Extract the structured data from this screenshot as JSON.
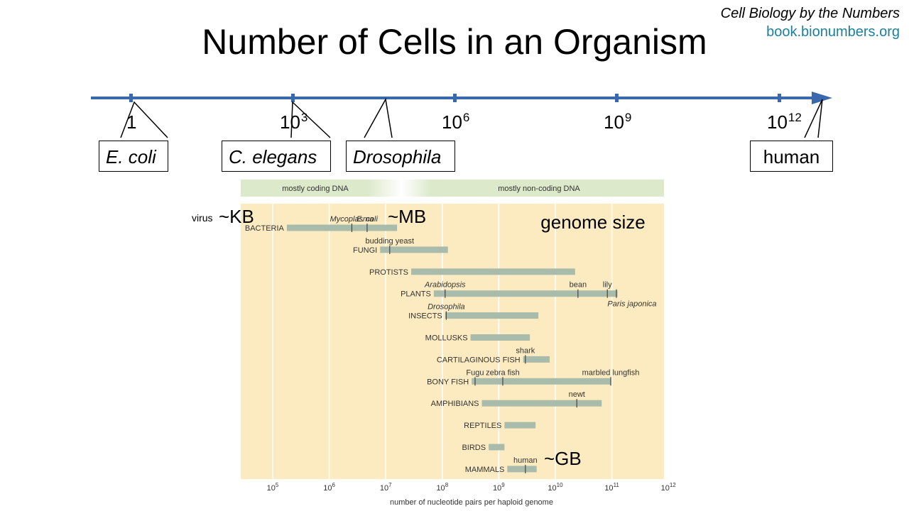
{
  "header": {
    "title": "Number of Cells in an Organism",
    "book": "Cell Biology by the Numbers",
    "url": "book.bionumbers.org"
  },
  "cell_axis": {
    "ticks": [
      {
        "base": "1",
        "exp": ""
      },
      {
        "base": "10",
        "exp": "3"
      },
      {
        "base": "10",
        "exp": "6"
      },
      {
        "base": "10",
        "exp": "9"
      },
      {
        "base": "10",
        "exp": "12"
      }
    ],
    "organisms": [
      {
        "name": "E. coli",
        "italic": true
      },
      {
        "name": "C. elegans",
        "italic": true
      },
      {
        "name": "Drosophila",
        "italic": true
      },
      {
        "name": "human",
        "italic": false
      }
    ]
  },
  "genome_chart": {
    "band_left": "mostly coding DNA",
    "band_right": "mostly non-coding DNA",
    "title": "genome size",
    "xlabel": "number of nucleotide pairs per haploid genome",
    "ticks": [
      {
        "base": "10",
        "exp": "5"
      },
      {
        "base": "10",
        "exp": "6"
      },
      {
        "base": "10",
        "exp": "7"
      },
      {
        "base": "10",
        "exp": "8"
      },
      {
        "base": "10",
        "exp": "9"
      },
      {
        "base": "10",
        "exp": "10"
      },
      {
        "base": "10",
        "exp": "11"
      },
      {
        "base": "10",
        "exp": "12"
      }
    ],
    "annotations": {
      "virus": "virus",
      "kb": "~KB",
      "mb": "~MB",
      "gb": "~GB"
    }
  },
  "chart_data": {
    "type": "bar",
    "title": "genome size",
    "xscale": "log10",
    "xlim": [
      4.5,
      12
    ],
    "xlabel": "number of nucleotide pairs per haploid genome",
    "categories": [
      "BACTERIA",
      "FUNGI",
      "PROTISTS",
      "PLANTS",
      "INSECTS",
      "MOLLUSKS",
      "CARTILAGINOUS FISH",
      "BONY FISH",
      "AMPHIBIANS",
      "REPTILES",
      "BIRDS",
      "MAMMALS"
    ],
    "ranges_log10": [
      [
        5.25,
        7.2
      ],
      [
        6.9,
        8.1
      ],
      [
        7.45,
        10.35
      ],
      [
        7.85,
        11.1
      ],
      [
        8.05,
        9.7
      ],
      [
        8.5,
        9.55
      ],
      [
        9.43,
        9.9
      ],
      [
        8.52,
        10.98
      ],
      [
        8.7,
        10.82
      ],
      [
        9.1,
        9.65
      ],
      [
        8.82,
        9.1
      ],
      [
        9.15,
        9.67
      ]
    ],
    "markers": [
      {
        "category": 0,
        "label": "Mycoplasma",
        "log10": 6.4,
        "italic": true
      },
      {
        "category": 0,
        "label": "E. coli",
        "log10": 6.67,
        "italic": true
      },
      {
        "category": 1,
        "label": "budding yeast",
        "log10": 7.07,
        "italic": false
      },
      {
        "category": 3,
        "label": "Arabidopsis",
        "log10": 8.05,
        "italic": true
      },
      {
        "category": 3,
        "label": "bean",
        "log10": 10.4,
        "italic": false
      },
      {
        "category": 3,
        "label": "lily",
        "log10": 10.92,
        "italic": false
      },
      {
        "category": 3,
        "label": "Paris japonica",
        "log10": 11.08,
        "italic": true
      },
      {
        "category": 4,
        "label": "Drosophila",
        "log10": 8.07,
        "italic": true
      },
      {
        "category": 6,
        "label": "shark",
        "log10": 9.47,
        "italic": false
      },
      {
        "category": 7,
        "label": "Fugu",
        "log10": 8.58,
        "italic": false
      },
      {
        "category": 7,
        "label": "zebra fish",
        "log10": 9.07,
        "italic": false
      },
      {
        "category": 7,
        "label": "marbled lungfish",
        "log10": 10.98,
        "italic": false
      },
      {
        "category": 8,
        "label": "newt",
        "log10": 10.38,
        "italic": false
      },
      {
        "category": 11,
        "label": "human",
        "log10": 9.47,
        "italic": false
      }
    ]
  }
}
